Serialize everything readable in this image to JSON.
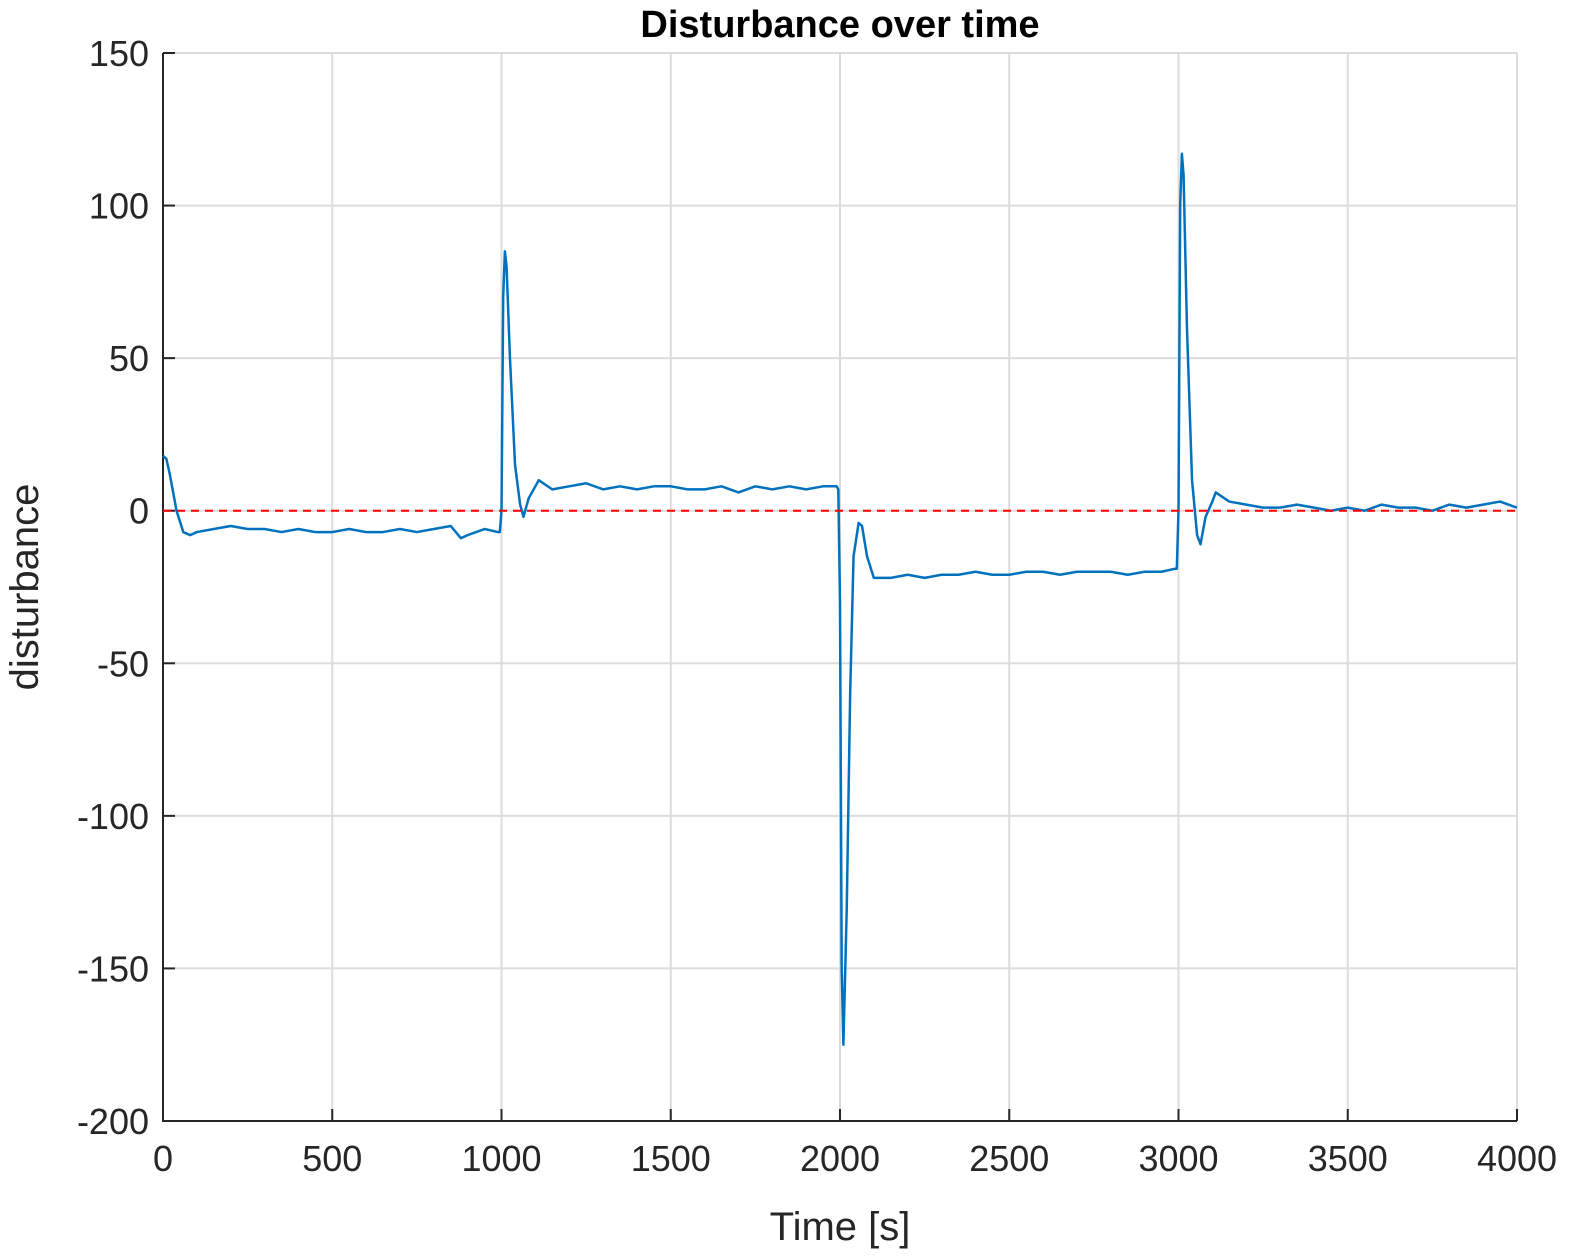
{
  "chart_data": {
    "type": "line",
    "title": "Disturbance over time",
    "xlabel": "Time [s]",
    "ylabel": "disturbance",
    "x": [
      0,
      10,
      20,
      40,
      60,
      80,
      100,
      150,
      200,
      250,
      300,
      350,
      400,
      450,
      500,
      550,
      600,
      650,
      700,
      750,
      800,
      850,
      880,
      900,
      950,
      990,
      995,
      1000,
      1005,
      1010,
      1015,
      1025,
      1040,
      1055,
      1065,
      1080,
      1100,
      1110,
      1150,
      1200,
      1250,
      1300,
      1350,
      1400,
      1450,
      1500,
      1550,
      1600,
      1650,
      1700,
      1750,
      1800,
      1850,
      1900,
      1950,
      1990,
      1995,
      2000,
      2005,
      2010,
      2020,
      2030,
      2040,
      2055,
      2065,
      2080,
      2100,
      2150,
      2200,
      2250,
      2300,
      2350,
      2400,
      2450,
      2500,
      2550,
      2600,
      2650,
      2700,
      2750,
      2800,
      2850,
      2900,
      2950,
      2990,
      2995,
      3000,
      3005,
      3010,
      3015,
      3025,
      3040,
      3055,
      3065,
      3080,
      3100,
      3110,
      3150,
      3200,
      3250,
      3300,
      3350,
      3400,
      3450,
      3500,
      3550,
      3600,
      3650,
      3700,
      3750,
      3800,
      3850,
      3900,
      3950,
      4000
    ],
    "series": [
      {
        "color": "#0072bd",
        "values": [
          18,
          17,
          12,
          0,
          -7,
          -8,
          -7,
          -6,
          -5,
          -6,
          -6,
          -7,
          -6,
          -7,
          -7,
          -6,
          -7,
          -7,
          -6,
          -7,
          -6,
          -5,
          -9,
          -8,
          -6,
          -7,
          -7,
          0,
          70,
          85,
          80,
          50,
          15,
          2,
          -2,
          4,
          8,
          10,
          7,
          8,
          9,
          7,
          8,
          7,
          8,
          8,
          7,
          7,
          8,
          6,
          8,
          7,
          8,
          7,
          8,
          8,
          7,
          -30,
          -150,
          -175,
          -130,
          -60,
          -15,
          -4,
          -5,
          -15,
          -22,
          -22,
          -21,
          -22,
          -21,
          -21,
          -20,
          -21,
          -21,
          -20,
          -20,
          -21,
          -20,
          -20,
          -20,
          -21,
          -20,
          -20,
          -19,
          -19,
          0,
          100,
          117,
          110,
          60,
          10,
          -8,
          -11,
          -2,
          3,
          6,
          3,
          2,
          1,
          1,
          2,
          1,
          0,
          1,
          0,
          2,
          1,
          1,
          0,
          2,
          1,
          2,
          3,
          1
        ]
      }
    ],
    "reference_line": {
      "value": 0,
      "color": "#ff0000",
      "dashed": true
    },
    "xlim": [
      0,
      4000
    ],
    "xticks": [
      0,
      500,
      1000,
      1500,
      2000,
      2500,
      3000,
      3500,
      4000
    ],
    "ylim": [
      -200,
      150
    ],
    "yticks": [
      -200,
      -150,
      -100,
      -50,
      0,
      50,
      100,
      150
    ],
    "grid": true
  }
}
